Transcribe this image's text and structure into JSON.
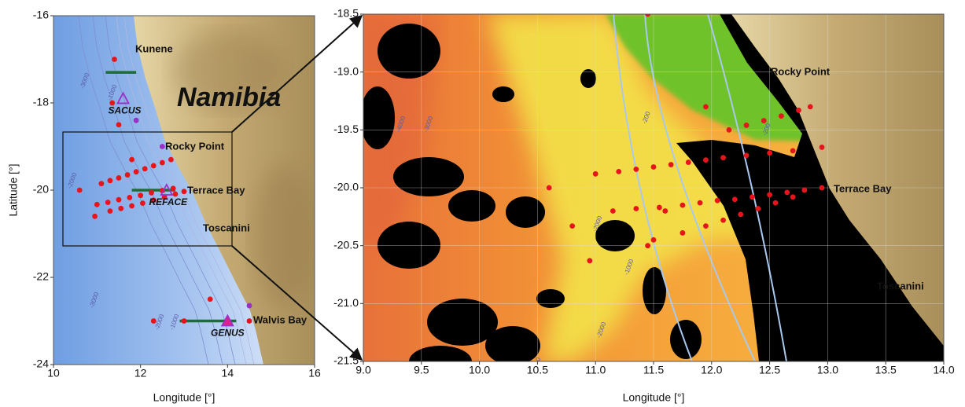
{
  "chart_data": [
    {
      "type": "map",
      "region_label": "Namibia",
      "xlabel": "Longitude [°]",
      "ylabel": "Latitude [°]",
      "xlim": [
        10,
        16
      ],
      "ylim": [
        -24,
        -16
      ],
      "xticks": [
        10,
        12,
        14,
        16
      ],
      "yticks": [
        -24,
        -22,
        -20,
        -18,
        -16
      ],
      "stations": {
        "color": "#e8141c",
        "x": [
          11.4,
          11.35,
          11.5,
          11.1,
          11.3,
          11.5,
          11.7,
          11.9,
          12.1,
          12.3,
          12.5,
          12.7,
          11.0,
          11.25,
          11.5,
          11.75,
          12.0,
          12.25,
          12.5,
          12.75,
          11.3,
          11.55,
          11.8,
          12.05,
          12.3,
          12.55,
          12.8,
          13.0,
          10.6,
          10.95,
          11.8,
          12.3,
          13.0,
          13.6,
          14.5
        ],
        "y": [
          -17.0,
          -18.0,
          -18.5,
          -19.85,
          -19.78,
          -19.72,
          -19.65,
          -19.58,
          -19.51,
          -19.44,
          -19.37,
          -19.3,
          -20.33,
          -20.28,
          -20.22,
          -20.17,
          -20.12,
          -20.06,
          -20.01,
          -19.96,
          -20.48,
          -20.42,
          -20.36,
          -20.3,
          -20.23,
          -20.16,
          -20.09,
          -20.03,
          -20.0,
          -20.6,
          -19.3,
          -23.0,
          -23.0,
          -22.5,
          -23.0
        ]
      },
      "coastal": {
        "color": "#9b2fc8",
        "x": [
          11.9,
          12.5,
          14.5
        ],
        "y": [
          -18.4,
          -19.0,
          -22.65
        ]
      },
      "transects": [
        {
          "color": "#1f6b3a",
          "x": [
            11.2,
            11.9
          ],
          "y": [
            -17.3,
            -17.3
          ]
        },
        {
          "color": "#1f6b3a",
          "x": [
            11.8,
            12.8
          ],
          "y": [
            -20.0,
            -20.0
          ]
        },
        {
          "color": "#1f6b3a",
          "x": [
            12.9,
            14.2
          ],
          "y": [
            -23.0,
            -23.0
          ]
        }
      ],
      "sites": [
        {
          "label": "SACUS",
          "color": "none",
          "x": 11.6,
          "y": -17.9
        },
        {
          "label": "REFACE",
          "color": "none",
          "x": 12.6,
          "y": -20.0
        },
        {
          "label": "GENUS",
          "color": "#e0208c",
          "x": 14.0,
          "y": -23.0
        }
      ],
      "places": [
        "Kunene",
        "Rocky Point",
        "Terrace Bay",
        "Toscanini",
        "Walvis Bay"
      ],
      "contour_labels": [
        "-3000",
        "-2000",
        "-1000",
        "-3000",
        "-2000",
        "-1000"
      ]
    },
    {
      "type": "map",
      "xlabel": "Longitude [°]",
      "xlim": [
        9,
        14
      ],
      "ylim": [
        -21.5,
        -18.5
      ],
      "xticks": [
        {
          "value": 9,
          "label": "9.0"
        },
        9.5,
        {
          "value": 10,
          "label": "10.0"
        },
        10.5,
        {
          "value": 11,
          "label": "11.0"
        },
        11.5,
        {
          "value": 12,
          "label": "12.0"
        },
        12.5,
        {
          "value": 13,
          "label": "13.0"
        },
        13.5,
        {
          "value": 14,
          "label": "14.0"
        }
      ],
      "yticks": [
        -21.5,
        {
          "value": -21,
          "label": "-21.0"
        },
        -20.5,
        {
          "value": -20,
          "label": "-20.0"
        },
        -19.5,
        {
          "value": -19,
          "label": "-19.0"
        },
        -18.5
      ],
      "stations": {
        "color": "#e8141c",
        "x": [
          11.45,
          11.95,
          12.15,
          12.3,
          12.45,
          12.6,
          12.75,
          12.85,
          11.0,
          11.2,
          11.35,
          11.5,
          11.65,
          11.8,
          11.95,
          12.1,
          12.3,
          12.5,
          12.7,
          12.95,
          11.15,
          11.35,
          11.55,
          11.75,
          11.9,
          12.05,
          12.2,
          12.35,
          12.5,
          12.65,
          12.8,
          12.95,
          11.5,
          11.75,
          11.95,
          12.1,
          12.25,
          12.4,
          12.55,
          12.7,
          10.6,
          10.8,
          10.95,
          11.45,
          11.6
        ],
        "y": [
          -18.5,
          -19.3,
          -19.5,
          -19.46,
          -19.42,
          -19.38,
          -19.33,
          -19.3,
          -19.88,
          -19.86,
          -19.84,
          -19.82,
          -19.8,
          -19.78,
          -19.76,
          -19.74,
          -19.72,
          -19.7,
          -19.68,
          -19.65,
          -20.2,
          -20.18,
          -20.17,
          -20.15,
          -20.13,
          -20.11,
          -20.1,
          -20.08,
          -20.06,
          -20.04,
          -20.02,
          -20.0,
          -20.45,
          -20.39,
          -20.33,
          -20.28,
          -20.23,
          -20.18,
          -20.13,
          -20.08,
          -20.0,
          -20.33,
          -20.63,
          -20.5,
          -20.2
        ]
      },
      "places": [
        "Rocky Point",
        "Terrace Bay",
        "Toscanini"
      ],
      "contour_labels": [
        "-4000",
        "-3000",
        "-2000",
        "-1000",
        "-200",
        "-2000",
        "-3000",
        "-200"
      ]
    }
  ]
}
